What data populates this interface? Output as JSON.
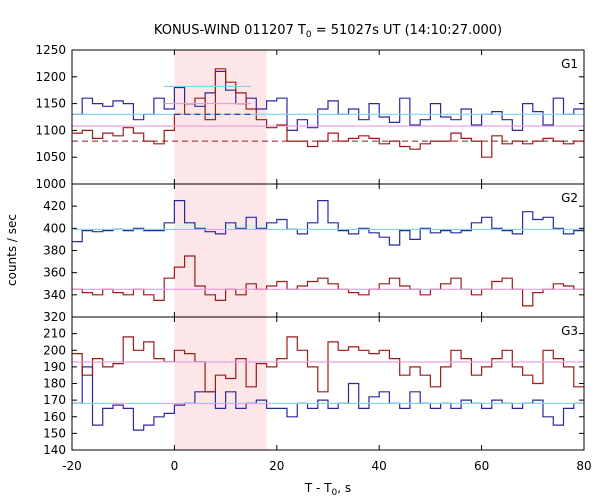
{
  "chart_data": {
    "type": "line",
    "title": {
      "prefix": "KONUS-WIND 011207 T",
      "sub": "0",
      "suffix": " = 51027s UT (14:10:27.000)"
    },
    "xlabel": {
      "prefix": "T - T",
      "sub": "0",
      "suffix": ", s"
    },
    "ylabel": "counts / sec",
    "xlim": [
      -20,
      80
    ],
    "xticks": [
      -20,
      0,
      20,
      40,
      60,
      80
    ],
    "highlight_interval": [
      0,
      18
    ],
    "colors": {
      "highlight": "#fde6e8",
      "blue": "#2a2a9e",
      "red": "#9b1b1b",
      "cyan": "#7fd4f0",
      "magenta": "#e89ae0"
    },
    "panels": [
      {
        "label": "G1",
        "ylim": [
          1000,
          1250
        ],
        "yticks": [
          1000,
          1050,
          1100,
          1150,
          1200,
          1250
        ],
        "series": [
          {
            "color": "blue",
            "style": "step",
            "x0": -20,
            "dx": 2,
            "values": [
              1130,
              1160,
              1150,
              1145,
              1155,
              1150,
              1120,
              1130,
              1160,
              1140,
              1180,
              1150,
              1145,
              1170,
              1210,
              1175,
              1150,
              1160,
              1140,
              1155,
              1160,
              1100,
              1120,
              1105,
              1140,
              1155,
              1130,
              1140,
              1120,
              1150,
              1125,
              1115,
              1160,
              1110,
              1120,
              1150,
              1125,
              1120,
              1140,
              1110,
              1130,
              1135,
              1120,
              1100,
              1150,
              1135,
              1110,
              1160,
              1130,
              1140
            ]
          },
          {
            "color": "red",
            "style": "step",
            "x0": -20,
            "dx": 2,
            "values": [
              1095,
              1100,
              1085,
              1095,
              1090,
              1105,
              1095,
              1080,
              1075,
              1100,
              1130,
              1150,
              1160,
              1120,
              1215,
              1190,
              1170,
              1140,
              1120,
              1105,
              1110,
              1080,
              1080,
              1070,
              1080,
              1095,
              1080,
              1085,
              1090,
              1085,
              1075,
              1080,
              1070,
              1065,
              1075,
              1080,
              1080,
              1095,
              1085,
              1080,
              1050,
              1090,
              1075,
              1080,
              1075,
              1080,
              1085,
              1080,
              1075,
              1080
            ]
          },
          {
            "color": "cyan",
            "style": "hline",
            "y": 1130,
            "x_range": [
              -20,
              80
            ]
          },
          {
            "color": "magenta",
            "style": "hline",
            "y": 1108,
            "x_range": [
              -20,
              80
            ]
          },
          {
            "color": "red",
            "style": "dashed",
            "y": 1080,
            "x_range": [
              -20,
              80
            ]
          },
          {
            "color": "cyan",
            "style": "hline",
            "y": 1182,
            "x_range": [
              -2,
              15
            ]
          },
          {
            "color": "magenta",
            "style": "hline",
            "y": 1150,
            "x_range": [
              -2,
              15
            ]
          },
          {
            "color": "blue",
            "style": "dashed",
            "y": 1130,
            "x_range": [
              0,
              15
            ]
          }
        ]
      },
      {
        "label": "G2",
        "ylim": [
          320,
          440
        ],
        "yticks": [
          320,
          340,
          360,
          380,
          400,
          420
        ],
        "series": [
          {
            "color": "blue",
            "style": "step",
            "x0": -20,
            "dx": 2,
            "values": [
              388,
              398,
              397,
              398,
              399,
              398,
              400,
              398,
              398,
              405,
              425,
              405,
              400,
              397,
              395,
              405,
              400,
              410,
              400,
              405,
              408,
              399,
              395,
              405,
              425,
              405,
              398,
              395,
              400,
              396,
              392,
              385,
              398,
              390,
              400,
              396,
              398,
              396,
              398,
              405,
              410,
              400,
              398,
              395,
              415,
              408,
              410,
              400,
              395,
              398
            ]
          },
          {
            "color": "red",
            "style": "step",
            "x0": -20,
            "dx": 2,
            "values": [
              345,
              342,
              340,
              345,
              342,
              340,
              345,
              340,
              335,
              355,
              365,
              375,
              348,
              340,
              335,
              345,
              340,
              350,
              345,
              348,
              352,
              345,
              348,
              352,
              355,
              350,
              345,
              342,
              340,
              345,
              350,
              355,
              348,
              345,
              340,
              345,
              350,
              355,
              345,
              340,
              345,
              352,
              355,
              345,
              330,
              342,
              345,
              350,
              348,
              345
            ]
          },
          {
            "color": "cyan",
            "style": "hline",
            "y": 399,
            "x_range": [
              -20,
              80
            ]
          },
          {
            "color": "magenta",
            "style": "hline",
            "y": 345,
            "x_range": [
              -20,
              80
            ]
          }
        ]
      },
      {
        "label": "G3",
        "ylim": [
          140,
          220
        ],
        "yticks": [
          140,
          150,
          160,
          170,
          180,
          190,
          200,
          210
        ],
        "series": [
          {
            "color": "blue",
            "style": "step",
            "x0": -20,
            "dx": 2,
            "values": [
              168,
              190,
              155,
              165,
              167,
              165,
              152,
              155,
              160,
              162,
              167,
              168,
              175,
              175,
              165,
              175,
              165,
              168,
              170,
              165,
              165,
              160,
              168,
              165,
              170,
              165,
              168,
              180,
              165,
              172,
              175,
              168,
              165,
              175,
              168,
              165,
              168,
              165,
              170,
              168,
              165,
              170,
              168,
              165,
              168,
              170,
              160,
              155,
              165,
              168
            ]
          },
          {
            "color": "red",
            "style": "step",
            "x0": -20,
            "dx": 2,
            "values": [
              198,
              185,
              195,
              190,
              192,
              208,
              200,
              205,
              195,
              193,
              200,
              198,
              193,
              175,
              185,
              183,
              195,
              178,
              192,
              190,
              195,
              208,
              200,
              190,
              175,
              205,
              200,
              202,
              200,
              198,
              200,
              195,
              185,
              190,
              185,
              178,
              190,
              200,
              195,
              185,
              190,
              195,
              200,
              190,
              185,
              180,
              200,
              195,
              190,
              178
            ]
          },
          {
            "color": "cyan",
            "style": "hline",
            "y": 168,
            "x_range": [
              -20,
              80
            ]
          },
          {
            "color": "magenta",
            "style": "hline",
            "y": 193,
            "x_range": [
              -20,
              80
            ]
          }
        ]
      }
    ]
  }
}
